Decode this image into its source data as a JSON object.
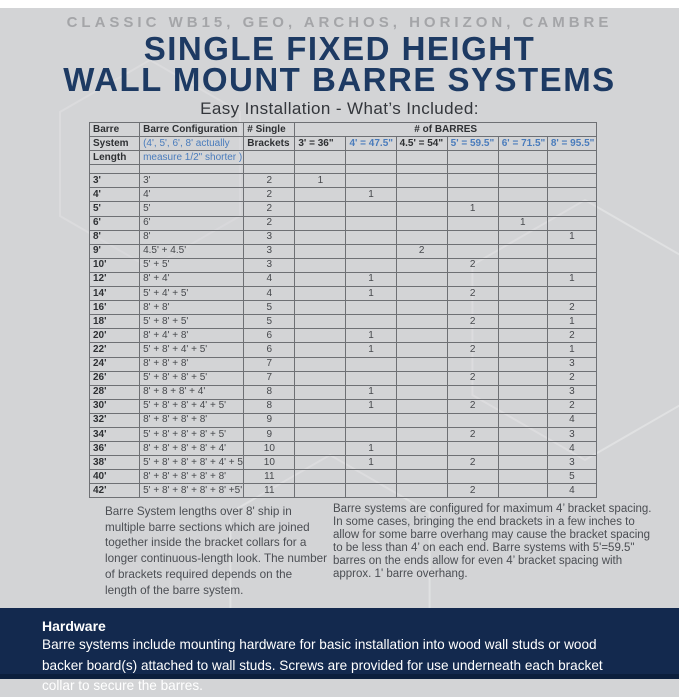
{
  "colors": {
    "navy": "#1d3a63",
    "dark_navy": "#13294e",
    "blue": "#4a7cbc",
    "background": "#d3d4d6"
  },
  "header": {
    "brand_line": "CLASSIC WB15, GEO, ARCHOS, HORIZON, CAMBRE",
    "title_line1": "SINGLE FIXED HEIGHT",
    "title_line2": "WALL MOUNT BARRE SYSTEMS",
    "subtitle": "Easy Installation - What’s Included:"
  },
  "table": {
    "col1_header": [
      "Barre",
      "System",
      "Length"
    ],
    "col2_header": [
      "Barre Configuration",
      "(4', 5', 6', 8' actually",
      "measure 1/2\" shorter )"
    ],
    "col3_header": [
      "# Single",
      "Brackets"
    ],
    "barres_header": "# of BARRES",
    "barre_columns": [
      {
        "label": "3' = 36\"",
        "style": "dark"
      },
      {
        "label": "4' = 47.5\"",
        "style": "blue"
      },
      {
        "label": "4.5' = 54\"",
        "style": "dark"
      },
      {
        "label": "5' = 59.5\"",
        "style": "blue"
      },
      {
        "label": "6' = 71.5\"",
        "style": "blue"
      },
      {
        "label": "8' = 95.5\"",
        "style": "blue"
      }
    ],
    "rows": [
      {
        "length": "3'",
        "config": "3'",
        "brackets": "2",
        "counts": [
          "1",
          "",
          "",
          "",
          "",
          ""
        ]
      },
      {
        "length": "4'",
        "config": "4'",
        "brackets": "2",
        "counts": [
          "",
          "1",
          "",
          "",
          "",
          ""
        ]
      },
      {
        "length": "5'",
        "config": "5'",
        "brackets": "2",
        "counts": [
          "",
          "",
          "",
          "1",
          "",
          ""
        ]
      },
      {
        "length": "6'",
        "config": "6'",
        "brackets": "2",
        "counts": [
          "",
          "",
          "",
          "",
          "1",
          ""
        ]
      },
      {
        "length": "8'",
        "config": "8'",
        "brackets": "3",
        "counts": [
          "",
          "",
          "",
          "",
          "",
          "1"
        ]
      },
      {
        "length": "9'",
        "config": "4.5' + 4.5'",
        "brackets": "3",
        "counts": [
          "",
          "",
          "2",
          "",
          "",
          ""
        ]
      },
      {
        "length": "10'",
        "config": "5' + 5'",
        "brackets": "3",
        "counts": [
          "",
          "",
          "",
          "2",
          "",
          ""
        ]
      },
      {
        "length": "12'",
        "config": "8' + 4'",
        "brackets": "4",
        "counts": [
          "",
          "1",
          "",
          "",
          "",
          "1"
        ]
      },
      {
        "length": "14'",
        "config": "5' + 4' + 5'",
        "brackets": "4",
        "counts": [
          "",
          "1",
          "",
          "2",
          "",
          ""
        ]
      },
      {
        "length": "16'",
        "config": "8' + 8'",
        "brackets": "5",
        "counts": [
          "",
          "",
          "",
          "",
          "",
          "2"
        ]
      },
      {
        "length": "18'",
        "config": "5' + 8' + 5'",
        "brackets": "5",
        "counts": [
          "",
          "",
          "",
          "2",
          "",
          "1"
        ]
      },
      {
        "length": "20'",
        "config": "8' + 4' + 8'",
        "brackets": "6",
        "counts": [
          "",
          "1",
          "",
          "",
          "",
          "2"
        ]
      },
      {
        "length": "22'",
        "config": "5' + 8' + 4' + 5'",
        "brackets": "6",
        "counts": [
          "",
          "1",
          "",
          "2",
          "",
          "1"
        ]
      },
      {
        "length": "24'",
        "config": "8' + 8' + 8'",
        "brackets": "7",
        "counts": [
          "",
          "",
          "",
          "",
          "",
          "3"
        ]
      },
      {
        "length": "26'",
        "config": "5' + 8' + 8' + 5'",
        "brackets": "7",
        "counts": [
          "",
          "",
          "",
          "2",
          "",
          "2"
        ]
      },
      {
        "length": "28'",
        "config": "8' + 8 + 8' + 4'",
        "brackets": "8",
        "counts": [
          "",
          "1",
          "",
          "",
          "",
          "3"
        ]
      },
      {
        "length": "30'",
        "config": "5' + 8' + 8' + 4' + 5'",
        "brackets": "8",
        "counts": [
          "",
          "1",
          "",
          "2",
          "",
          "2"
        ]
      },
      {
        "length": "32'",
        "config": "8' + 8' + 8' + 8'",
        "brackets": "9",
        "counts": [
          "",
          "",
          "",
          "",
          "",
          "4"
        ]
      },
      {
        "length": "34'",
        "config": "5' + 8' + 8' + 8' + 5'",
        "brackets": "9",
        "counts": [
          "",
          "",
          "",
          "2",
          "",
          "3"
        ]
      },
      {
        "length": "36'",
        "config": "8' + 8' + 8' + 8' + 4'",
        "brackets": "10",
        "counts": [
          "",
          "1",
          "",
          "",
          "",
          "4"
        ]
      },
      {
        "length": "38'",
        "config": "5' + 8' + 8' + 8' + 4' + 5'",
        "brackets": "10",
        "counts": [
          "",
          "1",
          "",
          "2",
          "",
          "3"
        ]
      },
      {
        "length": "40'",
        "config": "8' + 8' + 8' + 8' + 8'",
        "brackets": "11",
        "counts": [
          "",
          "",
          "",
          "",
          "",
          "5"
        ]
      },
      {
        "length": "42'",
        "config": "5' + 8' + 8' + 8' + 8' +5'",
        "brackets": "11",
        "counts": [
          "",
          "",
          "",
          "2",
          "",
          "4"
        ]
      }
    ]
  },
  "notes": {
    "left": "Barre System lengths over 8' ship in multiple barre sections which are joined together inside the bracket collars for a longer continuous-length look. The number of brackets required depends on the length of the barre system.",
    "right": "Barre systems are configured for maximum 4’ bracket spacing.  In some cases, bringing the end brackets in a few inches to allow for some barre overhang may cause the bracket spacing to be less than 4’ on each end.  Barre systems with 5'=59.5\" barres on the ends allow for even 4’ bracket spacing with approx. 1' barre overhang."
  },
  "hardware": {
    "heading": "Hardware",
    "body": "Barre systems include mounting hardware for basic installation into wood wall studs or wood backer board(s) attached to wall studs. Screws are provided for use underneath each bracket collar to secure the barres."
  }
}
